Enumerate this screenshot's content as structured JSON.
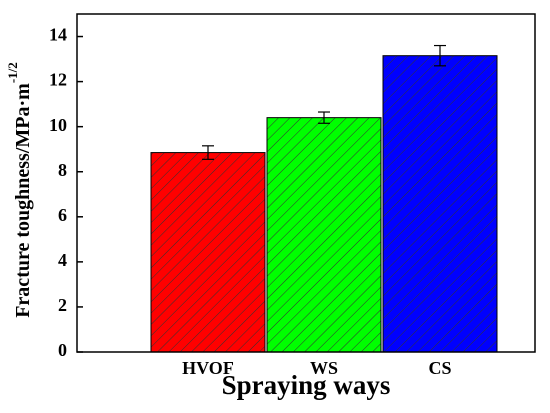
{
  "chart_data": {
    "type": "bar",
    "ylabel": "Fracture toughness/MPa·m",
    "ylabel_superscript": "-1/2",
    "xlabel": "Spraying ways",
    "categories": [
      "HVOF",
      "WS",
      "CS"
    ],
    "values": [
      8.85,
      10.4,
      13.15
    ],
    "errors": [
      0.3,
      0.25,
      0.45
    ],
    "colors": [
      "#ff0000",
      "#00ff00",
      "#0000ff"
    ],
    "hatch": true,
    "ylim": [
      0,
      15
    ],
    "yticks": [
      0,
      2,
      4,
      6,
      8,
      10,
      12,
      14
    ]
  }
}
